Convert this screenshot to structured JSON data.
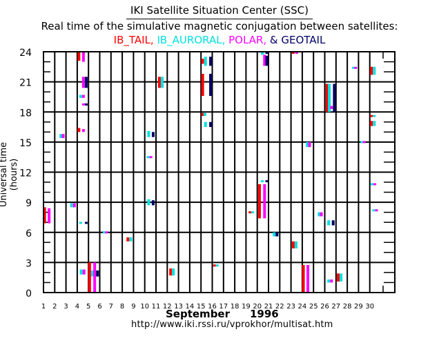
{
  "header": {
    "title": "IKI Satellite Situation Center (SSC)",
    "subtitle": "Real time of the simulative magnetic conjugation between satellites:",
    "legend_items": [
      {
        "label": "IB_TAIL,",
        "color": "#ff0000"
      },
      {
        "label": "IB_AURORAL,",
        "color": "#00e0e0"
      },
      {
        "label": "POLAR,",
        "color": "#ff00ff"
      },
      {
        "label": "& GEOTAIL",
        "color": "#000066"
      }
    ]
  },
  "footer": {
    "month": "September",
    "year": "1996",
    "url": "http://www.iki.rssi.ru/vprokhor/multisat.htm"
  },
  "chart_data": {
    "type": "scatter",
    "title": "Real time of the simulative magnetic conjugation between satellites",
    "xlabel": "September 1996",
    "ylabel": "Universal time (hours)",
    "xlim": [
      1,
      32
    ],
    "ylim": [
      0,
      24
    ],
    "x_ticks": [
      1,
      2,
      3,
      4,
      5,
      6,
      7,
      8,
      9,
      10,
      11,
      12,
      13,
      14,
      15,
      16,
      17,
      18,
      19,
      20,
      21,
      22,
      23,
      24,
      25,
      26,
      27,
      28,
      29,
      30
    ],
    "y_ticks": [
      0,
      3,
      6,
      9,
      12,
      15,
      18,
      21,
      24
    ],
    "grid": true,
    "series": [
      {
        "name": "IB_TAIL",
        "color": "#ff0000"
      },
      {
        "name": "IB_AURORAL",
        "color": "#00e0e0"
      },
      {
        "name": "POLAR",
        "color": "#ff00ff"
      },
      {
        "name": "GEOTAIL",
        "color": "#000066"
      }
    ],
    "events": [
      {
        "sat": "IB_TAIL",
        "day": 1.1,
        "start": 6.9,
        "end": 8.5
      },
      {
        "sat": "POLAR",
        "day": 1.5,
        "start": 6.9,
        "end": 8.4
      },
      {
        "sat": "IB_AURORAL",
        "day": 2.55,
        "start": 15.4,
        "end": 15.8
      },
      {
        "sat": "POLAR",
        "day": 2.75,
        "start": 15.4,
        "end": 15.8
      },
      {
        "sat": "IB_AURORAL",
        "day": 3.5,
        "start": 8.5,
        "end": 8.9
      },
      {
        "sat": "POLAR",
        "day": 3.75,
        "start": 8.5,
        "end": 8.9
      },
      {
        "sat": "IB_TAIL",
        "day": 4.15,
        "start": 23.1,
        "end": 24.0
      },
      {
        "sat": "POLAR",
        "day": 4.55,
        "start": 23.0,
        "end": 24.0
      },
      {
        "sat": "POLAR",
        "day": 4.55,
        "start": 20.4,
        "end": 21.5
      },
      {
        "sat": "GEOTAIL",
        "day": 4.8,
        "start": 20.4,
        "end": 21.5
      },
      {
        "sat": "IB_AURORAL",
        "day": 4.3,
        "start": 19.4,
        "end": 19.7
      },
      {
        "sat": "POLAR",
        "day": 4.55,
        "start": 19.4,
        "end": 19.7
      },
      {
        "sat": "POLAR",
        "day": 4.55,
        "start": 18.75,
        "end": 18.85
      },
      {
        "sat": "GEOTAIL",
        "day": 4.8,
        "start": 18.75,
        "end": 18.85
      },
      {
        "sat": "IB_TAIL",
        "day": 4.15,
        "start": 16.0,
        "end": 16.4
      },
      {
        "sat": "POLAR",
        "day": 4.55,
        "start": 16.0,
        "end": 16.3
      },
      {
        "sat": "IB_AURORAL",
        "day": 4.3,
        "start": 6.95,
        "end": 7.05
      },
      {
        "sat": "GEOTAIL",
        "day": 4.8,
        "start": 6.95,
        "end": 7.05
      },
      {
        "sat": "IB_AURORAL",
        "day": 4.35,
        "start": 1.8,
        "end": 2.3
      },
      {
        "sat": "POLAR",
        "day": 4.6,
        "start": 1.8,
        "end": 2.3
      },
      {
        "sat": "IB_TAIL",
        "day": 5.1,
        "start": 0.0,
        "end": 3.0
      },
      {
        "sat": "IB_AURORAL",
        "day": 5.35,
        "start": 1.6,
        "end": 2.2
      },
      {
        "sat": "POLAR",
        "day": 5.55,
        "start": 0.0,
        "end": 3.0
      },
      {
        "sat": "GEOTAIL",
        "day": 5.8,
        "start": 1.6,
        "end": 2.2
      },
      {
        "sat": "IB_AURORAL",
        "day": 6.4,
        "start": 5.95,
        "end": 6.1
      },
      {
        "sat": "POLAR",
        "day": 6.6,
        "start": 5.95,
        "end": 6.1
      },
      {
        "sat": "IB_TAIL",
        "day": 8.5,
        "start": 5.1,
        "end": 5.5
      },
      {
        "sat": "IB_AURORAL",
        "day": 8.75,
        "start": 5.1,
        "end": 5.5
      },
      {
        "sat": "IB_AURORAL",
        "day": 10.35,
        "start": 15.5,
        "end": 16.1
      },
      {
        "sat": "GEOTAIL",
        "day": 10.75,
        "start": 15.5,
        "end": 16.0
      },
      {
        "sat": "IB_AURORAL",
        "day": 10.3,
        "start": 13.45,
        "end": 13.6
      },
      {
        "sat": "POLAR",
        "day": 10.55,
        "start": 13.45,
        "end": 13.6
      },
      {
        "sat": "IB_AURORAL",
        "day": 10.35,
        "start": 8.7,
        "end": 9.3
      },
      {
        "sat": "GEOTAIL",
        "day": 10.75,
        "start": 8.7,
        "end": 9.2
      },
      {
        "sat": "IB_TAIL",
        "day": 11.3,
        "start": 20.4,
        "end": 21.5
      },
      {
        "sat": "IB_AURORAL",
        "day": 11.55,
        "start": 20.4,
        "end": 21.5
      },
      {
        "sat": "IB_TAIL",
        "day": 12.3,
        "start": 1.7,
        "end": 2.4
      },
      {
        "sat": "IB_AURORAL",
        "day": 12.55,
        "start": 1.7,
        "end": 2.4
      },
      {
        "sat": "IB_TAIL",
        "day": 15.15,
        "start": 22.8,
        "end": 23.3
      },
      {
        "sat": "IB_AURORAL",
        "day": 15.4,
        "start": 22.6,
        "end": 23.5
      },
      {
        "sat": "GEOTAIL",
        "day": 15.85,
        "start": 22.6,
        "end": 23.5
      },
      {
        "sat": "IB_TAIL",
        "day": 15.15,
        "start": 19.6,
        "end": 21.8
      },
      {
        "sat": "GEOTAIL",
        "day": 15.85,
        "start": 19.6,
        "end": 21.8
      },
      {
        "sat": "IB_TAIL",
        "day": 15.15,
        "start": 17.6,
        "end": 17.9
      },
      {
        "sat": "IB_AURORAL",
        "day": 15.35,
        "start": 17.6,
        "end": 17.9
      },
      {
        "sat": "IB_AURORAL",
        "day": 15.4,
        "start": 16.5,
        "end": 17.0
      },
      {
        "sat": "GEOTAIL",
        "day": 15.85,
        "start": 16.5,
        "end": 17.0
      },
      {
        "sat": "IB_TAIL",
        "day": 16.2,
        "start": 2.65,
        "end": 2.8
      },
      {
        "sat": "IB_AURORAL",
        "day": 16.45,
        "start": 2.65,
        "end": 2.8
      },
      {
        "sat": "IB_TAIL",
        "day": 19.35,
        "start": 7.95,
        "end": 8.1
      },
      {
        "sat": "IB_AURORAL",
        "day": 19.6,
        "start": 7.95,
        "end": 8.1
      },
      {
        "sat": "IB_TAIL",
        "day": 20.2,
        "start": 7.4,
        "end": 10.8
      },
      {
        "sat": "POLAR",
        "day": 20.65,
        "start": 7.4,
        "end": 10.8
      },
      {
        "sat": "IB_AURORAL",
        "day": 20.45,
        "start": 11.0,
        "end": 11.2
      },
      {
        "sat": "GEOTAIL",
        "day": 20.85,
        "start": 11.0,
        "end": 11.2
      },
      {
        "sat": "IB_AURORAL",
        "day": 20.45,
        "start": 23.7,
        "end": 24.0
      },
      {
        "sat": "GEOTAIL",
        "day": 20.85,
        "start": 23.8,
        "end": 24.0
      },
      {
        "sat": "POLAR",
        "day": 20.65,
        "start": 22.6,
        "end": 23.7
      },
      {
        "sat": "GEOTAIL",
        "day": 20.85,
        "start": 22.6,
        "end": 23.6
      },
      {
        "sat": "IB_AURORAL",
        "day": 21.5,
        "start": 5.6,
        "end": 6.0
      },
      {
        "sat": "GEOTAIL",
        "day": 21.75,
        "start": 5.6,
        "end": 6.0
      },
      {
        "sat": "IB_TAIL",
        "day": 23.2,
        "start": 4.4,
        "end": 5.1
      },
      {
        "sat": "IB_AURORAL",
        "day": 23.45,
        "start": 4.4,
        "end": 5.1
      },
      {
        "sat": "IB_TAIL",
        "day": 23.2,
        "start": 23.8,
        "end": 24.0
      },
      {
        "sat": "POLAR",
        "day": 23.5,
        "start": 23.8,
        "end": 24.0
      },
      {
        "sat": "IB_TAIL",
        "day": 24.1,
        "start": 0.0,
        "end": 2.75
      },
      {
        "sat": "POLAR",
        "day": 24.5,
        "start": 0.0,
        "end": 2.75
      },
      {
        "sat": "IB_AURORAL",
        "day": 24.45,
        "start": 14.5,
        "end": 15.0
      },
      {
        "sat": "POLAR",
        "day": 24.65,
        "start": 14.5,
        "end": 15.0
      },
      {
        "sat": "IB_AURORAL",
        "day": 25.5,
        "start": 7.6,
        "end": 8.0
      },
      {
        "sat": "POLAR",
        "day": 25.7,
        "start": 7.6,
        "end": 8.0
      },
      {
        "sat": "IB_TAIL",
        "day": 26.2,
        "start": 18.0,
        "end": 20.8
      },
      {
        "sat": "IB_AURORAL",
        "day": 26.4,
        "start": 18.0,
        "end": 20.8
      },
      {
        "sat": "POLAR",
        "day": 26.6,
        "start": 18.3,
        "end": 18.6
      },
      {
        "sat": "GEOTAIL",
        "day": 26.85,
        "start": 18.0,
        "end": 20.8
      },
      {
        "sat": "IB_AURORAL",
        "day": 26.35,
        "start": 6.7,
        "end": 7.2
      },
      {
        "sat": "GEOTAIL",
        "day": 26.75,
        "start": 6.7,
        "end": 7.2
      },
      {
        "sat": "IB_AURORAL",
        "day": 26.35,
        "start": 1.0,
        "end": 1.3
      },
      {
        "sat": "POLAR",
        "day": 26.6,
        "start": 1.0,
        "end": 1.3
      },
      {
        "sat": "IB_TAIL",
        "day": 27.2,
        "start": 1.1,
        "end": 1.9
      },
      {
        "sat": "IB_AURORAL",
        "day": 27.45,
        "start": 1.1,
        "end": 1.9
      },
      {
        "sat": "IB_AURORAL",
        "day": 28.55,
        "start": 22.3,
        "end": 22.5
      },
      {
        "sat": "POLAR",
        "day": 28.75,
        "start": 22.3,
        "end": 22.5
      },
      {
        "sat": "IB_AURORAL",
        "day": 29.3,
        "start": 14.95,
        "end": 15.1
      },
      {
        "sat": "POLAR",
        "day": 29.5,
        "start": 14.95,
        "end": 15.1
      },
      {
        "sat": "IB_TAIL",
        "day": 30.15,
        "start": 21.7,
        "end": 22.5
      },
      {
        "sat": "IB_AURORAL",
        "day": 30.4,
        "start": 21.7,
        "end": 22.5
      },
      {
        "sat": "IB_TAIL",
        "day": 30.15,
        "start": 17.5,
        "end": 17.7
      },
      {
        "sat": "IB_AURORAL",
        "day": 30.4,
        "start": 17.5,
        "end": 17.7
      },
      {
        "sat": "IB_TAIL",
        "day": 30.15,
        "start": 16.6,
        "end": 17.1
      },
      {
        "sat": "IB_AURORAL",
        "day": 30.4,
        "start": 16.6,
        "end": 17.1
      },
      {
        "sat": "IB_AURORAL",
        "day": 30.2,
        "start": 10.7,
        "end": 10.9
      },
      {
        "sat": "POLAR",
        "day": 30.45,
        "start": 10.7,
        "end": 10.9
      },
      {
        "sat": "IB_AURORAL",
        "day": 30.35,
        "start": 8.15,
        "end": 8.3
      },
      {
        "sat": "POLAR",
        "day": 30.6,
        "start": 8.15,
        "end": 8.3
      }
    ]
  }
}
